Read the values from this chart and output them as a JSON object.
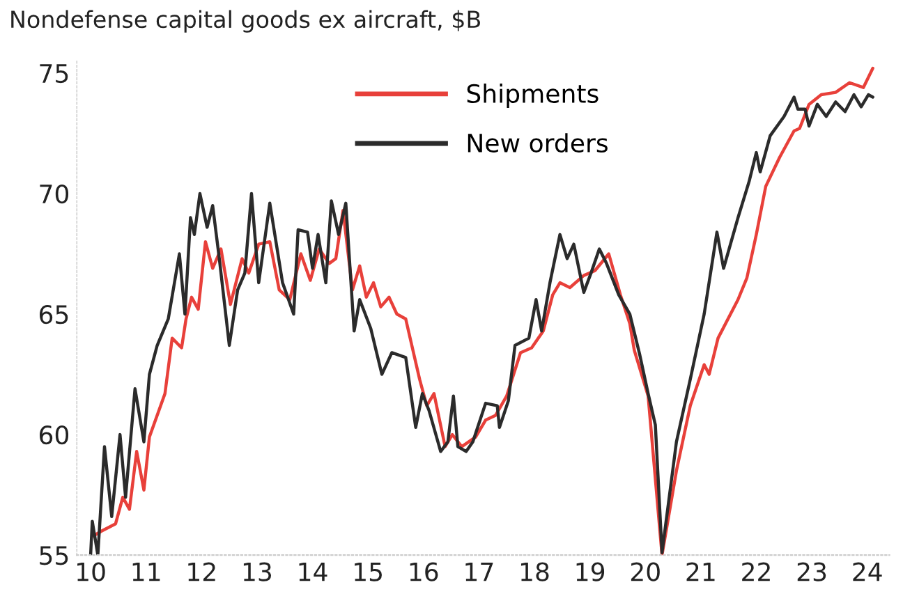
{
  "chart_data": {
    "type": "line",
    "title": "Nondefense capital goods ex aircraft, $B",
    "xlim": [
      2009.75,
      2024.4
    ],
    "xticks": [
      {
        "value": 2010,
        "label": "10"
      },
      {
        "value": 2011,
        "label": "11"
      },
      {
        "value": 2012,
        "label": "12"
      },
      {
        "value": 2013,
        "label": "13"
      },
      {
        "value": 2014,
        "label": "14"
      },
      {
        "value": 2015,
        "label": "15"
      },
      {
        "value": 2016,
        "label": "16"
      },
      {
        "value": 2017,
        "label": "17"
      },
      {
        "value": 2018,
        "label": "18"
      },
      {
        "value": 2019,
        "label": "19"
      },
      {
        "value": 2020,
        "label": "20"
      },
      {
        "value": 2021,
        "label": "21"
      },
      {
        "value": 2022,
        "label": "22"
      },
      {
        "value": 2023,
        "label": "23"
      },
      {
        "value": 2024,
        "label": "24"
      }
    ],
    "ylim": [
      55,
      75.5
    ],
    "yticks": [
      55,
      60,
      65,
      70,
      75
    ],
    "grid": false,
    "legend": "top",
    "marker": "none",
    "line_style": "solid",
    "series": [
      {
        "name": "Shipments",
        "color": "#e8403a",
        "x": [
          2010.05,
          2010.2,
          2010.45,
          2010.58,
          2010.7,
          2010.83,
          2010.96,
          2011.06,
          2011.34,
          2011.47,
          2011.64,
          2011.72,
          2011.82,
          2011.94,
          2012.07,
          2012.2,
          2012.35,
          2012.52,
          2012.73,
          2012.85,
          2013.03,
          2013.23,
          2013.4,
          2013.59,
          2013.79,
          2013.96,
          2014.12,
          2014.3,
          2014.42,
          2014.55,
          2014.72,
          2014.85,
          2014.97,
          2015.1,
          2015.23,
          2015.38,
          2015.52,
          2015.68,
          2015.93,
          2016.06,
          2016.19,
          2016.39,
          2016.52,
          2016.69,
          2016.94,
          2017.12,
          2017.3,
          2017.5,
          2017.75,
          2017.95,
          2018.16,
          2018.33,
          2018.46,
          2018.64,
          2018.89,
          2019.09,
          2019.34,
          2019.55,
          2019.72,
          2019.8,
          2020.05,
          2020.3,
          2020.56,
          2020.81,
          2021.06,
          2021.15,
          2021.31,
          2021.67,
          2021.83,
          2022.0,
          2022.17,
          2022.42,
          2022.68,
          2022.78,
          2022.95,
          2023.17,
          2023.43,
          2023.68,
          2023.93,
          2024.1
        ],
        "values": [
          55.8,
          56.0,
          56.3,
          57.4,
          56.9,
          59.3,
          57.7,
          59.9,
          61.7,
          64.0,
          63.6,
          64.8,
          65.7,
          65.2,
          68.0,
          66.9,
          67.7,
          65.4,
          67.3,
          66.7,
          67.9,
          68.0,
          66.0,
          65.6,
          67.5,
          66.4,
          67.7,
          67.1,
          67.3,
          69.3,
          66.0,
          67.0,
          65.7,
          66.3,
          65.3,
          65.7,
          65.0,
          64.8,
          62.3,
          61.2,
          61.7,
          59.5,
          60.0,
          59.5,
          59.9,
          60.6,
          60.8,
          61.6,
          63.4,
          63.6,
          64.3,
          65.8,
          66.3,
          66.1,
          66.6,
          66.8,
          67.5,
          65.8,
          64.6,
          63.5,
          61.6,
          55.0,
          58.5,
          61.2,
          62.9,
          62.5,
          64.0,
          65.6,
          66.5,
          68.3,
          70.3,
          71.5,
          72.6,
          72.7,
          73.7,
          74.1,
          74.2,
          74.6,
          74.4,
          75.2
        ]
      },
      {
        "name": "New orders",
        "color": "#2b2b2b",
        "x": [
          2010.0,
          2010.03,
          2010.13,
          2010.25,
          2010.38,
          2010.53,
          2010.63,
          2010.8,
          2010.96,
          2011.06,
          2011.2,
          2011.4,
          2011.6,
          2011.7,
          2011.8,
          2011.87,
          2011.97,
          2012.1,
          2012.2,
          2012.32,
          2012.5,
          2012.65,
          2012.78,
          2012.9,
          2013.03,
          2013.23,
          2013.46,
          2013.66,
          2013.74,
          2013.91,
          2014.0,
          2014.1,
          2014.24,
          2014.34,
          2014.47,
          2014.6,
          2014.75,
          2014.85,
          2015.05,
          2015.25,
          2015.43,
          2015.68,
          2015.86,
          2015.98,
          2016.1,
          2016.31,
          2016.44,
          2016.54,
          2016.62,
          2016.77,
          2016.89,
          2017.12,
          2017.33,
          2017.37,
          2017.53,
          2017.65,
          2017.9,
          2018.03,
          2018.13,
          2018.28,
          2018.46,
          2018.59,
          2018.71,
          2018.89,
          2019.02,
          2019.17,
          2019.3,
          2019.52,
          2019.72,
          2019.9,
          2020.05,
          2020.18,
          2020.3,
          2020.56,
          2020.81,
          2021.06,
          2021.29,
          2021.41,
          2021.67,
          2021.87,
          2022.0,
          2022.07,
          2022.25,
          2022.5,
          2022.68,
          2022.75,
          2022.88,
          2022.95,
          2023.1,
          2023.26,
          2023.43,
          2023.6,
          2023.76,
          2023.89,
          2024.02,
          2024.1
        ],
        "values": [
          55.0,
          56.4,
          55.0,
          59.5,
          56.6,
          60.0,
          57.4,
          61.9,
          59.7,
          62.5,
          63.7,
          64.8,
          67.5,
          65.0,
          69.0,
          68.3,
          70.0,
          68.6,
          69.5,
          67.3,
          63.7,
          66.0,
          66.7,
          70.0,
          66.3,
          69.6,
          66.3,
          65.0,
          68.5,
          68.4,
          66.9,
          68.3,
          66.3,
          69.7,
          68.3,
          69.6,
          64.3,
          65.6,
          64.4,
          62.5,
          63.4,
          63.2,
          60.3,
          61.7,
          61.0,
          59.3,
          59.7,
          61.6,
          59.5,
          59.3,
          59.7,
          61.3,
          61.2,
          60.3,
          61.4,
          63.7,
          64.0,
          65.6,
          64.3,
          66.3,
          68.3,
          67.3,
          67.9,
          65.9,
          66.7,
          67.7,
          67.1,
          65.8,
          65.0,
          63.3,
          61.7,
          60.4,
          55.1,
          59.7,
          62.3,
          65.0,
          68.4,
          66.9,
          69.0,
          70.5,
          71.7,
          70.9,
          72.4,
          73.2,
          74.0,
          73.5,
          73.5,
          72.8,
          73.7,
          73.2,
          73.8,
          73.4,
          74.1,
          73.6,
          74.1,
          74.0
        ]
      }
    ]
  }
}
